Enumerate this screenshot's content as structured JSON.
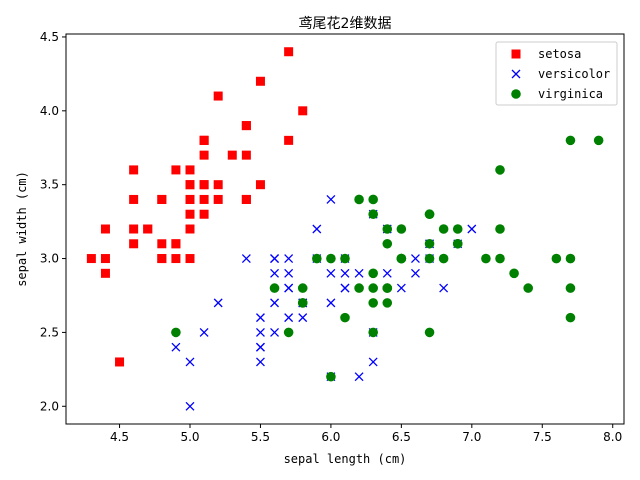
{
  "chart_data": {
    "type": "scatter",
    "title": "鸢尾花2维数据",
    "xlabel": "sepal length (cm)",
    "ylabel": "sepal width (cm)",
    "xlim": [
      4.12,
      8.08
    ],
    "ylim": [
      1.88,
      4.52
    ],
    "xticks": [
      "4.5",
      "5.0",
      "5.5",
      "6.0",
      "6.5",
      "7.0",
      "7.5",
      "8.0"
    ],
    "yticks": [
      "2.0",
      "2.5",
      "3.0",
      "3.5",
      "4.0",
      "4.5"
    ],
    "grid": false,
    "legend_position": "top-right",
    "series": [
      {
        "name": "setosa",
        "marker": "square",
        "color": "#ff0000",
        "points": [
          [
            5.1,
            3.5
          ],
          [
            4.9,
            3.0
          ],
          [
            4.7,
            3.2
          ],
          [
            4.6,
            3.1
          ],
          [
            5.0,
            3.6
          ],
          [
            5.4,
            3.9
          ],
          [
            4.6,
            3.4
          ],
          [
            5.0,
            3.4
          ],
          [
            4.4,
            2.9
          ],
          [
            4.9,
            3.1
          ],
          [
            5.4,
            3.7
          ],
          [
            4.8,
            3.4
          ],
          [
            4.8,
            3.0
          ],
          [
            4.3,
            3.0
          ],
          [
            5.8,
            4.0
          ],
          [
            5.7,
            4.4
          ],
          [
            5.4,
            3.9
          ],
          [
            5.1,
            3.5
          ],
          [
            5.7,
            3.8
          ],
          [
            5.1,
            3.8
          ],
          [
            5.4,
            3.4
          ],
          [
            5.1,
            3.7
          ],
          [
            4.6,
            3.6
          ],
          [
            5.1,
            3.3
          ],
          [
            4.8,
            3.4
          ],
          [
            5.0,
            3.0
          ],
          [
            5.0,
            3.4
          ],
          [
            5.2,
            3.5
          ],
          [
            5.2,
            3.4
          ],
          [
            4.7,
            3.2
          ],
          [
            4.8,
            3.1
          ],
          [
            5.4,
            3.4
          ],
          [
            5.2,
            4.1
          ],
          [
            5.5,
            4.2
          ],
          [
            4.9,
            3.1
          ],
          [
            5.0,
            3.2
          ],
          [
            5.5,
            3.5
          ],
          [
            4.9,
            3.6
          ],
          [
            4.4,
            3.0
          ],
          [
            5.1,
            3.4
          ],
          [
            5.0,
            3.5
          ],
          [
            4.5,
            2.3
          ],
          [
            4.4,
            3.2
          ],
          [
            5.0,
            3.5
          ],
          [
            5.1,
            3.8
          ],
          [
            4.8,
            3.0
          ],
          [
            5.1,
            3.8
          ],
          [
            4.6,
            3.2
          ],
          [
            5.3,
            3.7
          ],
          [
            5.0,
            3.3
          ]
        ]
      },
      {
        "name": "versicolor",
        "marker": "x",
        "color": "#0000ff",
        "points": [
          [
            7.0,
            3.2
          ],
          [
            6.4,
            3.2
          ],
          [
            6.9,
            3.1
          ],
          [
            5.5,
            2.3
          ],
          [
            6.5,
            2.8
          ],
          [
            5.7,
            2.8
          ],
          [
            6.3,
            3.3
          ],
          [
            4.9,
            2.4
          ],
          [
            6.6,
            2.9
          ],
          [
            5.2,
            2.7
          ],
          [
            5.0,
            2.0
          ],
          [
            5.9,
            3.0
          ],
          [
            6.0,
            2.2
          ],
          [
            6.1,
            2.9
          ],
          [
            5.6,
            2.9
          ],
          [
            6.7,
            3.1
          ],
          [
            5.6,
            3.0
          ],
          [
            5.8,
            2.7
          ],
          [
            6.2,
            2.2
          ],
          [
            5.6,
            2.5
          ],
          [
            5.9,
            3.2
          ],
          [
            6.1,
            2.8
          ],
          [
            6.3,
            2.5
          ],
          [
            6.1,
            2.8
          ],
          [
            6.4,
            2.9
          ],
          [
            6.6,
            3.0
          ],
          [
            6.8,
            2.8
          ],
          [
            6.7,
            3.0
          ],
          [
            6.0,
            2.9
          ],
          [
            5.7,
            2.6
          ],
          [
            5.5,
            2.4
          ],
          [
            5.5,
            2.4
          ],
          [
            5.8,
            2.7
          ],
          [
            6.0,
            2.7
          ],
          [
            5.4,
            3.0
          ],
          [
            6.0,
            3.4
          ],
          [
            6.7,
            3.1
          ],
          [
            6.3,
            2.3
          ],
          [
            5.6,
            3.0
          ],
          [
            5.5,
            2.5
          ],
          [
            5.5,
            2.6
          ],
          [
            6.1,
            3.0
          ],
          [
            5.8,
            2.6
          ],
          [
            5.0,
            2.3
          ],
          [
            5.6,
            2.7
          ],
          [
            5.7,
            3.0
          ],
          [
            5.7,
            2.9
          ],
          [
            6.2,
            2.9
          ],
          [
            5.1,
            2.5
          ],
          [
            5.7,
            2.8
          ]
        ]
      },
      {
        "name": "virginica",
        "marker": "circle",
        "color": "#008000",
        "points": [
          [
            6.3,
            3.3
          ],
          [
            5.8,
            2.7
          ],
          [
            7.1,
            3.0
          ],
          [
            6.3,
            2.9
          ],
          [
            6.5,
            3.0
          ],
          [
            7.6,
            3.0
          ],
          [
            4.9,
            2.5
          ],
          [
            7.3,
            2.9
          ],
          [
            6.7,
            2.5
          ],
          [
            7.2,
            3.6
          ],
          [
            6.5,
            3.2
          ],
          [
            6.4,
            2.7
          ],
          [
            6.8,
            3.0
          ],
          [
            5.7,
            2.5
          ],
          [
            5.8,
            2.8
          ],
          [
            6.4,
            3.2
          ],
          [
            6.5,
            3.0
          ],
          [
            7.7,
            3.8
          ],
          [
            7.7,
            2.6
          ],
          [
            6.0,
            2.2
          ],
          [
            6.9,
            3.2
          ],
          [
            5.6,
            2.8
          ],
          [
            7.7,
            2.8
          ],
          [
            6.3,
            2.7
          ],
          [
            6.7,
            3.3
          ],
          [
            7.2,
            3.2
          ],
          [
            6.2,
            2.8
          ],
          [
            6.1,
            3.0
          ],
          [
            6.4,
            2.8
          ],
          [
            7.2,
            3.0
          ],
          [
            7.4,
            2.8
          ],
          [
            7.9,
            3.8
          ],
          [
            6.4,
            2.8
          ],
          [
            6.3,
            2.8
          ],
          [
            6.1,
            2.6
          ],
          [
            7.7,
            3.0
          ],
          [
            6.3,
            3.4
          ],
          [
            6.4,
            3.1
          ],
          [
            6.0,
            3.0
          ],
          [
            6.9,
            3.1
          ],
          [
            6.7,
            3.1
          ],
          [
            6.9,
            3.1
          ],
          [
            5.8,
            2.7
          ],
          [
            6.8,
            3.2
          ],
          [
            6.7,
            3.3
          ],
          [
            6.7,
            3.0
          ],
          [
            6.3,
            2.5
          ],
          [
            6.5,
            3.0
          ],
          [
            6.2,
            3.4
          ],
          [
            5.9,
            3.0
          ]
        ]
      }
    ]
  }
}
